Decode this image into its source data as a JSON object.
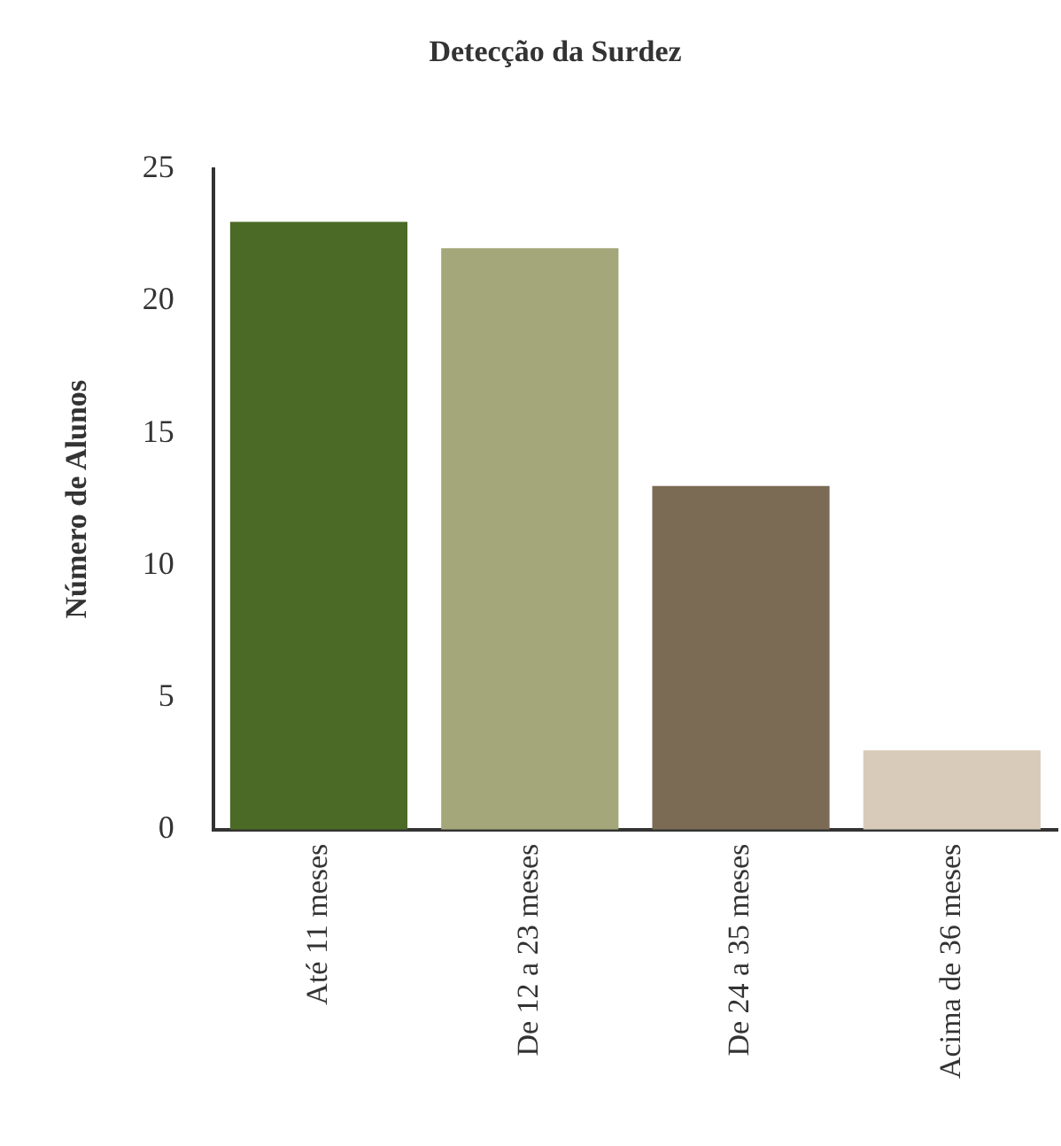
{
  "chart_data": {
    "type": "bar",
    "title": "Detecção da Surdez",
    "ylabel": "Número de Alunos",
    "categories": [
      "Até 11 meses",
      "De 12 a 23 meses",
      "De 24 a 35 meses",
      "Acima de 36 meses"
    ],
    "values": [
      23,
      22,
      13,
      3
    ],
    "colors": [
      "#4b6a25",
      "#a3a77a",
      "#7b6b54",
      "#d9cbb9"
    ],
    "ylim": [
      0,
      25
    ],
    "yticks": [
      0,
      5,
      10,
      15,
      20,
      25
    ],
    "grid": false,
    "legend": false
  }
}
